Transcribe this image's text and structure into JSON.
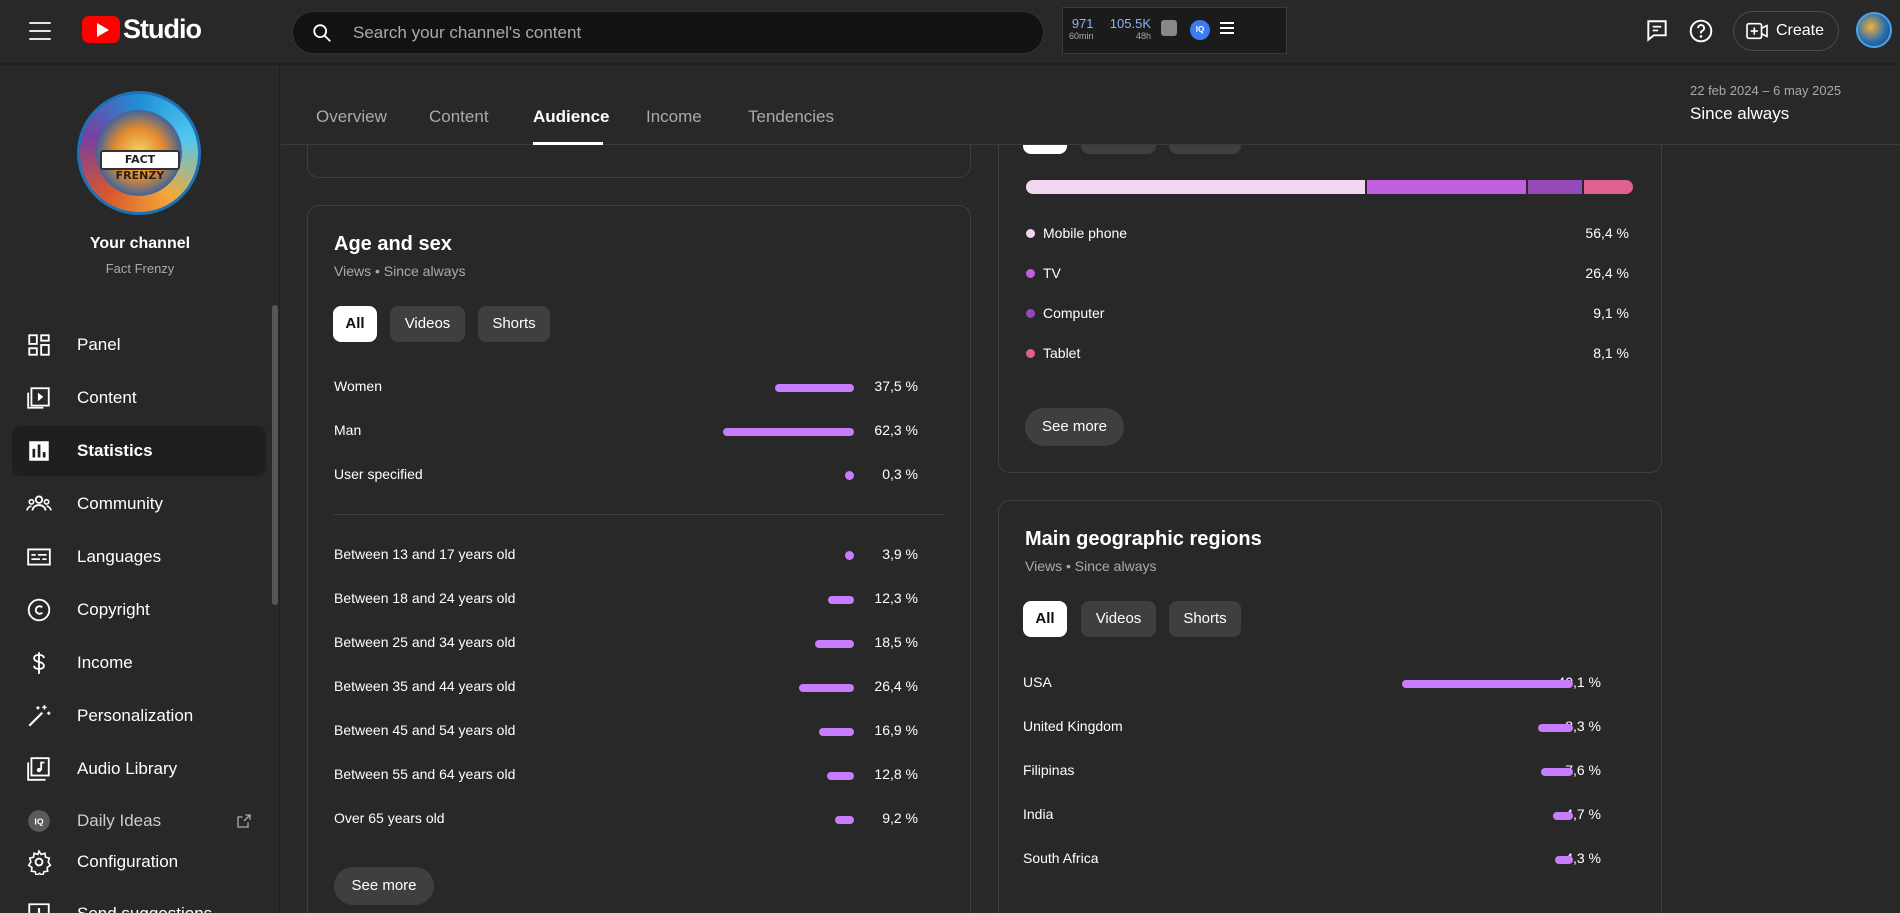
{
  "header": {
    "logo_text": "Studio",
    "search_placeholder": "Search your channel's content",
    "ext": {
      "views60": "971",
      "views60_label": "60min",
      "views48": "105.5K",
      "views48_label": "48h",
      "iq_label": "IQ"
    },
    "create_label": "Create"
  },
  "channel": {
    "title": "Your channel",
    "name": "Fact Frenzy",
    "avatar_text": "FACT FRENZY"
  },
  "sidebar": {
    "items": [
      {
        "label": "Panel",
        "icon": "dashboard-icon"
      },
      {
        "label": "Content",
        "icon": "content-icon"
      },
      {
        "label": "Statistics",
        "icon": "analytics-icon"
      },
      {
        "label": "Community",
        "icon": "community-icon"
      },
      {
        "label": "Languages",
        "icon": "subtitles-icon"
      },
      {
        "label": "Copyright",
        "icon": "copyright-icon"
      },
      {
        "label": "Income",
        "icon": "dollar-icon"
      },
      {
        "label": "Personalization",
        "icon": "magic-wand-icon"
      },
      {
        "label": "Audio Library",
        "icon": "music-icon"
      },
      {
        "label": "Daily Ideas",
        "icon": "iq-icon"
      },
      {
        "label": "Configuration",
        "icon": "gear-icon"
      },
      {
        "label": "Send suggestions",
        "icon": "feedback-icon"
      }
    ]
  },
  "tabs": [
    "Overview",
    "Content",
    "Audience",
    "Income",
    "Tendencies"
  ],
  "active_tab": "Audience",
  "date_range": {
    "range": "22 feb 2024 – 6 may 2025",
    "label": "Since always"
  },
  "age_sex": {
    "title": "Age and sex",
    "subtitle": "Views • Since always",
    "chips": [
      "All",
      "Videos",
      "Shorts"
    ],
    "sex": [
      {
        "label": "Women",
        "value": "37,5 %",
        "pct": 37.5
      },
      {
        "label": "Man",
        "value": "62,3 %",
        "pct": 62.3
      },
      {
        "label": "User specified",
        "value": "0,3 %",
        "pct": 0.3
      }
    ],
    "ages": [
      {
        "label": "Between 13 and 17 years old",
        "value": "3,9 %",
        "pct": 3.9
      },
      {
        "label": "Between 18 and 24 years old",
        "value": "12,3 %",
        "pct": 12.3
      },
      {
        "label": "Between 25 and 34 years old",
        "value": "18,5 %",
        "pct": 18.5
      },
      {
        "label": "Between 35 and 44 years old",
        "value": "26,4 %",
        "pct": 26.4
      },
      {
        "label": "Between 45 and 54 years old",
        "value": "16,9 %",
        "pct": 16.9
      },
      {
        "label": "Between 55 and 64 years old",
        "value": "12,8 %",
        "pct": 12.8
      },
      {
        "label": "Over 65 years old",
        "value": "9,2 %",
        "pct": 9.2
      }
    ],
    "see_more": "See more"
  },
  "devices": {
    "items": [
      {
        "label": "Mobile phone",
        "value": "56,4 %",
        "pct": 56.4,
        "color": "#f1d6f2"
      },
      {
        "label": "TV",
        "value": "26,4 %",
        "pct": 26.4,
        "color": "#c060e0"
      },
      {
        "label": "Computer",
        "value": "9,1 %",
        "pct": 9.1,
        "color": "#9548b8"
      },
      {
        "label": "Tablet",
        "value": "8,1 %",
        "pct": 8.1,
        "color": "#e0608f"
      }
    ],
    "see_more": "See more"
  },
  "geo": {
    "title": "Main geographic regions",
    "subtitle": "Views • Since always",
    "chips": [
      "All",
      "Videos",
      "Shorts"
    ],
    "items": [
      {
        "label": "USA",
        "value": "40,1 %",
        "pct": 40.1
      },
      {
        "label": "United Kingdom",
        "value": "8,3 %",
        "pct": 8.3
      },
      {
        "label": "Filipinas",
        "value": "7,6 %",
        "pct": 7.6
      },
      {
        "label": "India",
        "value": "4,7 %",
        "pct": 4.7
      },
      {
        "label": "South Africa",
        "value": "4,3 %",
        "pct": 4.3
      }
    ]
  },
  "colors": {
    "bar": "#c77dff",
    "background": "#282828"
  }
}
